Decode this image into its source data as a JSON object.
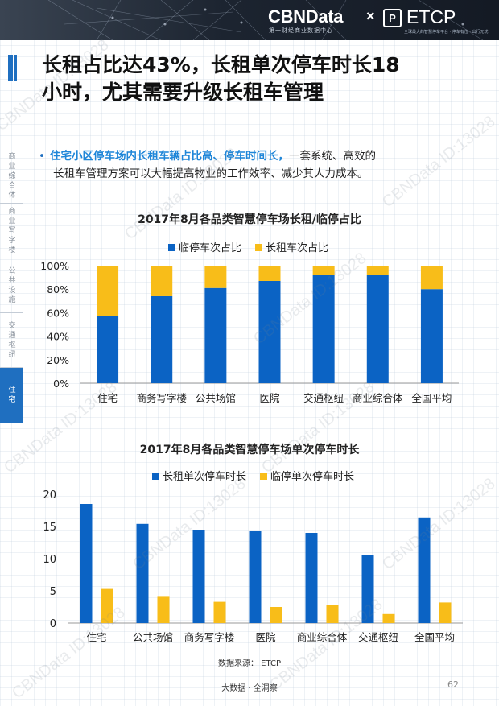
{
  "header": {
    "logo_text": "CBNData",
    "logo_sub": "第一财经商业数据中心",
    "times": "×",
    "etcp_box": "P",
    "etcp_text": "ETCP",
    "etcp_sub": "全球最大的智慧停车平台 · 停车有位 · 出行无忧"
  },
  "title": {
    "line1": "长租占比达43%，长租单次停车时长18",
    "line2": "小时，尤其需要升级长租车管理"
  },
  "sidebar": {
    "items": [
      {
        "label": "商业综合体",
        "active": false
      },
      {
        "label": "商业写字楼",
        "active": false
      },
      {
        "label": "公共设施",
        "active": false
      },
      {
        "label": "交通枢纽",
        "active": false
      },
      {
        "label": "住宅",
        "active": true
      }
    ]
  },
  "bullet": {
    "dot": "•",
    "highlight": "住宅小区停车场内长租车辆占比高、停车时间长，",
    "rest_line1": "一套系统、高效的",
    "line2": "长租车管理方案可以大幅提高物业的工作效率、减少其人力成本。"
  },
  "colors": {
    "blue": "#0b63c4",
    "yellow": "#f8bd19",
    "accent": "#1f6fc0"
  },
  "chart_data": [
    {
      "type": "bar",
      "stacked": true,
      "title": "2017年8月各品类智慧停车场长租/临停占比",
      "categories": [
        "住宅",
        "商务写字楼",
        "公共场馆",
        "医院",
        "交通枢纽",
        "商业综合体",
        "全国平均"
      ],
      "series": [
        {
          "name": "临停车次占比",
          "color": "#0b63c4",
          "values": [
            57,
            74,
            81,
            87,
            92,
            92,
            80
          ]
        },
        {
          "name": "长租车次占比",
          "color": "#f8bd19",
          "values": [
            43,
            26,
            19,
            13,
            8,
            8,
            20
          ]
        }
      ],
      "yticks": [
        "0%",
        "20%",
        "40%",
        "60%",
        "80%",
        "100%"
      ],
      "ylim": [
        0,
        100
      ],
      "legend": "top-center",
      "grid": false
    },
    {
      "type": "bar",
      "stacked": false,
      "title": "2017年8月各品类智慧停车场单次停车时长",
      "categories": [
        "住宅",
        "公共场馆",
        "商务写字楼",
        "医院",
        "商业综合体",
        "交通枢纽",
        "全国平均"
      ],
      "series": [
        {
          "name": "长租单次停车时长",
          "color": "#0b63c4",
          "values": [
            18.5,
            15.4,
            14.5,
            14.3,
            14.0,
            10.6,
            16.4
          ]
        },
        {
          "name": "临停单次停车时长",
          "color": "#f8bd19",
          "values": [
            5.3,
            4.2,
            3.3,
            2.5,
            2.8,
            1.4,
            3.2
          ]
        }
      ],
      "yticks": [
        "0",
        "5",
        "10",
        "15",
        "20"
      ],
      "ylim": [
        0,
        20
      ],
      "legend": "top-center",
      "grid": false
    }
  ],
  "footer": {
    "source": "数据来源： ETCP",
    "center": "大数据 · 全洞察",
    "page": "62"
  },
  "watermark": "CBNData ID:13028"
}
